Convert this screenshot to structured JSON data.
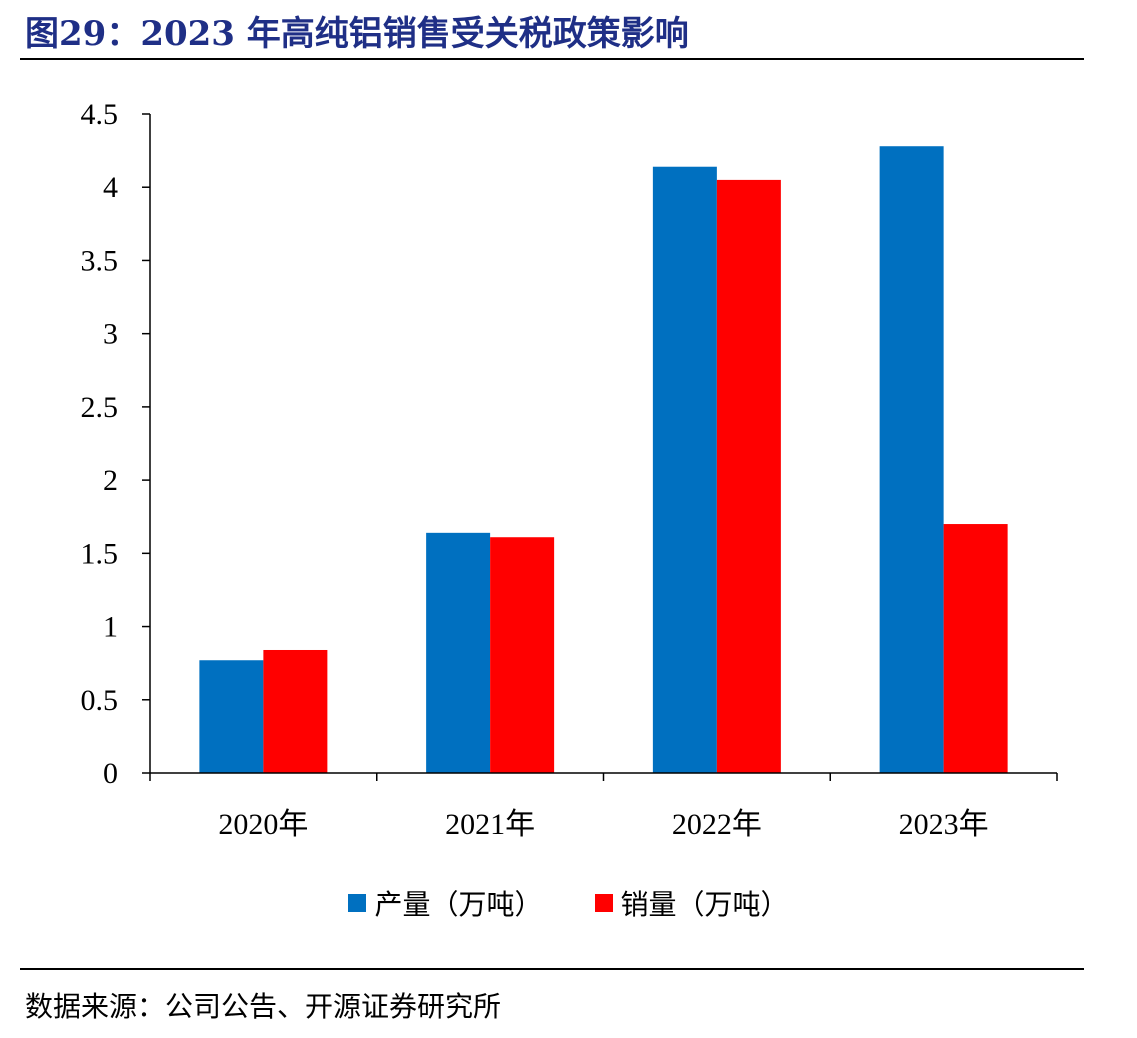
{
  "header": {
    "title": "图29：2023 年高纯铝销售受关税政策影响"
  },
  "chart_data": {
    "type": "bar",
    "categories": [
      "2020年",
      "2021年",
      "2022年",
      "2023年"
    ],
    "series": [
      {
        "name": "产量（万吨）",
        "color": "#0070c0",
        "values": [
          0.77,
          1.64,
          4.14,
          4.28
        ]
      },
      {
        "name": "销量（万吨）",
        "color": "#ff0000",
        "values": [
          0.84,
          1.61,
          4.05,
          1.7
        ]
      }
    ],
    "ylim": [
      0,
      4.5
    ],
    "yticks": [
      "0",
      "0.5",
      "1",
      "1.5",
      "2",
      "2.5",
      "3",
      "3.5",
      "4",
      "4.5"
    ],
    "xlabel": "",
    "ylabel": "",
    "grid": false,
    "legend": "bottom"
  },
  "footer": {
    "source": "数据来源：公司公告、开源证券研究所"
  }
}
